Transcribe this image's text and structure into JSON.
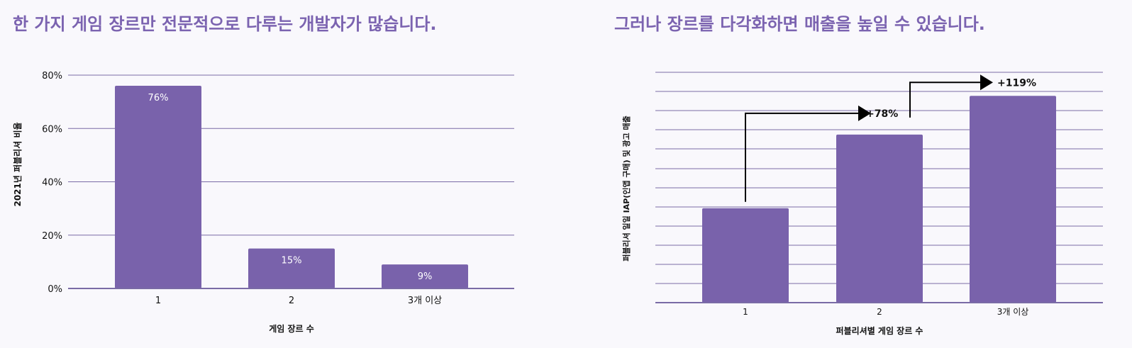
{
  "left": {
    "title": "한 가지 게임 장르만 전문적으로 다루는 개발자가 많습니다."
  },
  "right": {
    "title": "그러나 장르를 다각화하면 매출을 높일 수 있습니다."
  },
  "colors": {
    "bar": "#7962ab",
    "grid": "#7a6ba6",
    "title": "#7b63b0",
    "arrow": "#000000"
  },
  "chart_data": [
    {
      "type": "bar",
      "categories": [
        "1",
        "2",
        "3개 이상"
      ],
      "values": [
        76,
        15,
        9
      ],
      "data_labels": [
        "76%",
        "15%",
        "9%"
      ],
      "yticks": [
        "0%",
        "20%",
        "40%",
        "60%",
        "80%"
      ],
      "ylim": [
        0,
        80
      ],
      "xlabel": "게임 장르 수",
      "ylabel": "2021년 퍼블리셔 비율",
      "grid": true
    },
    {
      "type": "bar",
      "categories": [
        "1",
        "2",
        "3개 이상"
      ],
      "values": [
        1.0,
        1.78,
        2.19
      ],
      "annotations": [
        "+78%",
        "+119%"
      ],
      "xlabel": "퍼블리셔별 게임 장르 수",
      "ylabel": "퍼블리셔 일일 IAP(인앱 구매) 및 광고 매출",
      "grid": true
    }
  ]
}
